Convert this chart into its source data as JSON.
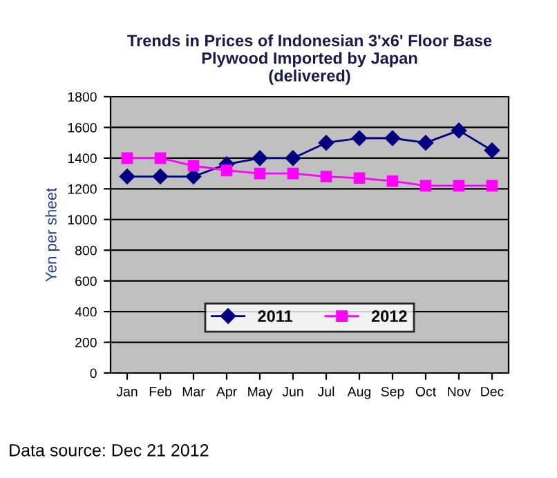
{
  "chart_data": {
    "type": "line",
    "title": "Trends in Prices of Indonesian 3'x6' Floor Base\nPlywood Imported by Japan\n(delivered)",
    "ylabel": "Yen per sheet",
    "categories": [
      "Jan",
      "Feb",
      "Mar",
      "Apr",
      "May",
      "Jun",
      "Jul",
      "Aug",
      "Sep",
      "Oct",
      "Nov",
      "Dec"
    ],
    "series": [
      {
        "name": "2011",
        "color": "#000080",
        "marker": "diamond",
        "values": [
          1280,
          1280,
          1280,
          1360,
          1400,
          1400,
          1500,
          1530,
          1530,
          1500,
          1580,
          1450
        ]
      },
      {
        "name": "2012",
        "color": "#ff00ff",
        "marker": "square",
        "values": [
          1400,
          1400,
          1350,
          1320,
          1300,
          1300,
          1280,
          1270,
          1250,
          1220,
          1220,
          1220
        ]
      }
    ],
    "ylim": [
      0,
      1800
    ],
    "yticks": [
      0,
      200,
      400,
      600,
      800,
      1000,
      1200,
      1400,
      1600,
      1800
    ],
    "grid": "y",
    "legend": "bottom",
    "line_style": "solid",
    "annotations": [
      "Data source: Dec 21 2012"
    ]
  }
}
